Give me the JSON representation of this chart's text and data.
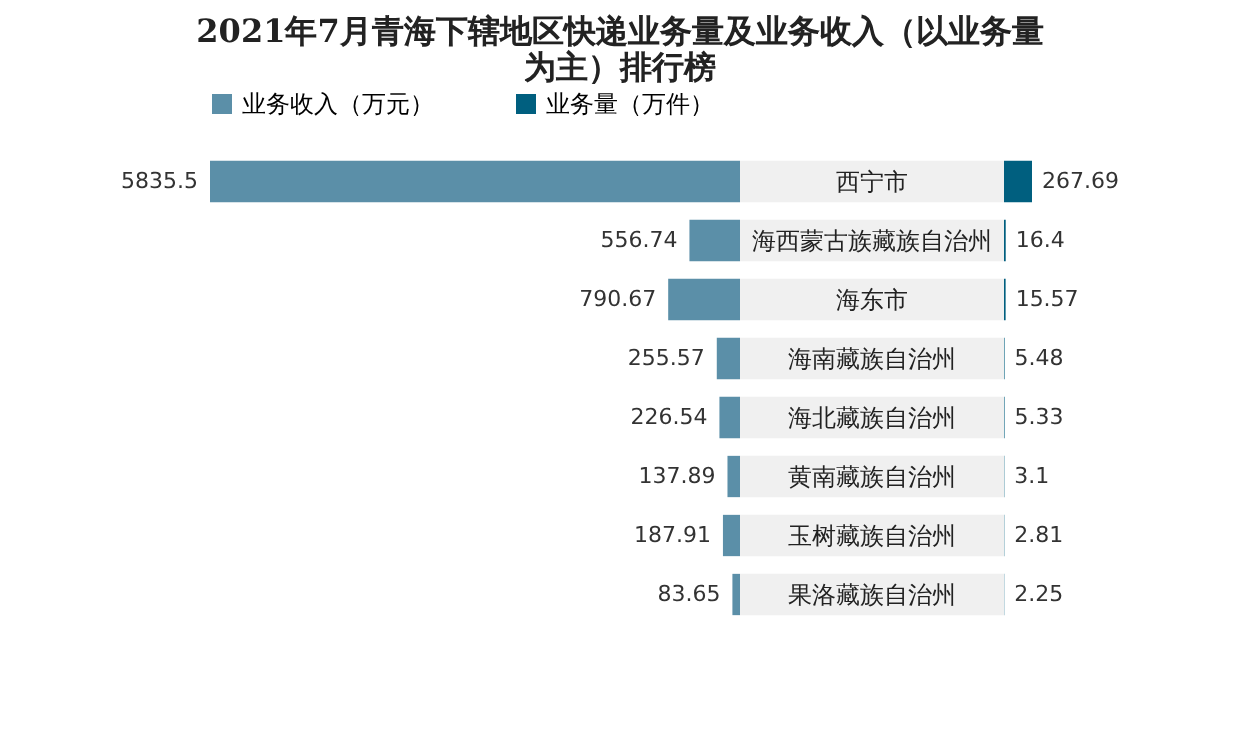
{
  "chart_data": [
    {
      "type": "bar",
      "orientation": "horizontal",
      "title": "2021年7月青海下辖地区快递业务量及业务收入（以业务量为主）排行榜",
      "categories": [
        "西宁市",
        "海西蒙古族藏族自治州",
        "海东市",
        "海南藏族自治州",
        "海北藏族自治州",
        "黄南藏族自治州",
        "玉树藏族自治州",
        "果洛藏族自治州"
      ],
      "series": [
        {
          "name": "业务收入（万元）",
          "color": "#5b8fa8",
          "values": [
            5835.5,
            556.74,
            790.67,
            255.57,
            226.54,
            137.89,
            187.91,
            83.65
          ]
        }
      ],
      "data_labels": true,
      "legend": "top"
    },
    {
      "type": "bar",
      "orientation": "horizontal",
      "categories": [
        null,
        null,
        null,
        null,
        null,
        null,
        null,
        null
      ],
      "series": [
        {
          "name": "业务量（万件）",
          "color": "#005f7f",
          "values": [
            267.69,
            16.4,
            15.57,
            5.48,
            5.33,
            3.1,
            2.81,
            2.25
          ]
        }
      ],
      "data_labels": true
    }
  ]
}
